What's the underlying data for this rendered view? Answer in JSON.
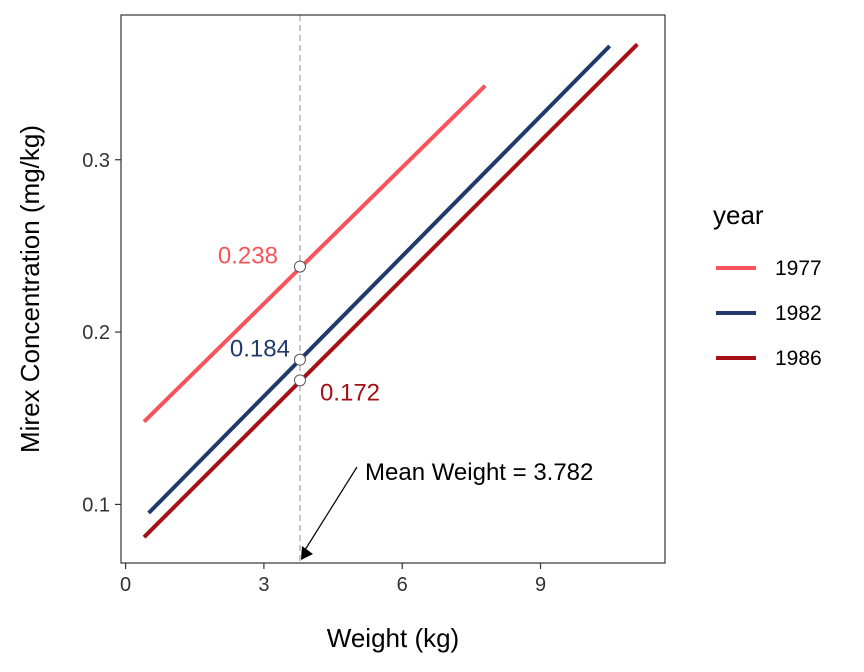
{
  "chart_data": {
    "type": "line",
    "xlabel": "Weight (kg)",
    "ylabel": "Mirex Concentration (mg/kg)",
    "xlim": [
      -0.1,
      11.7
    ],
    "ylim": [
      0.066,
      0.384
    ],
    "x_ticks": [
      0,
      3,
      6,
      9
    ],
    "x_tick_labels": [
      "0",
      "3",
      "6",
      "9"
    ],
    "y_ticks": [
      0.1,
      0.2,
      0.3
    ],
    "y_tick_labels": [
      "0.1",
      "0.2",
      "0.3"
    ],
    "grid": false,
    "legend": {
      "title": "year",
      "position": "right"
    },
    "series": [
      {
        "name": "1977",
        "color": "#F8535A",
        "x": [
          0.4,
          7.8
        ],
        "y": [
          0.148,
          0.343
        ],
        "point_value": 0.238,
        "point_label": "0.238"
      },
      {
        "name": "1982",
        "color": "#1F3A6B",
        "x": [
          0.5,
          10.5
        ],
        "y": [
          0.095,
          0.366
        ],
        "point_value": 0.184,
        "point_label": "0.184"
      },
      {
        "name": "1986",
        "color": "#A50F15",
        "x": [
          0.4,
          11.1
        ],
        "y": [
          0.081,
          0.367
        ],
        "point_value": 0.172,
        "point_label": "0.172"
      }
    ],
    "reference_line": {
      "x": 3.782,
      "style": "dashed",
      "color": "#B5B5B5"
    },
    "annotation": {
      "text": "Mean Weight = 3.782",
      "arrow_to_x": 3.782
    }
  }
}
